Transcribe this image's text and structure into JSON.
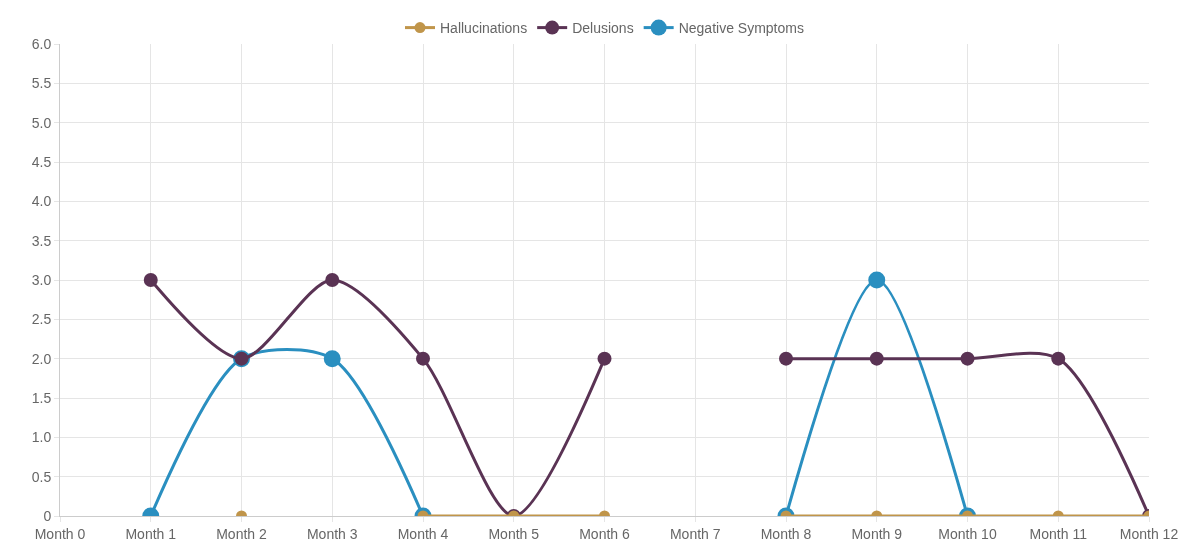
{
  "chart_data": {
    "type": "line",
    "categories": [
      "Month 0",
      "Month 1",
      "Month 2",
      "Month 3",
      "Month 4",
      "Month 5",
      "Month 6",
      "Month 7",
      "Month 8",
      "Month 9",
      "Month 10",
      "Month 11",
      "Month 12"
    ],
    "series": [
      {
        "name": "Hallucinations",
        "color": "#c0954a",
        "values": [
          null,
          null,
          0,
          null,
          0,
          0,
          0,
          null,
          0,
          0,
          0,
          0,
          0
        ]
      },
      {
        "name": "Delusions",
        "color": "#5a3354",
        "values": [
          null,
          3,
          2,
          3,
          2,
          0,
          2,
          null,
          2,
          2,
          2,
          2,
          0
        ]
      },
      {
        "name": "Negative Symptoms",
        "color": "#2a8fc0",
        "values": [
          null,
          0,
          2,
          2,
          0,
          null,
          null,
          null,
          0,
          3,
          0,
          null,
          null
        ]
      }
    ],
    "ylim": [
      0,
      6
    ],
    "yticks": [
      0,
      0.5,
      {
        "value": 1,
        "label": "1.0"
      },
      1.5,
      {
        "value": 2,
        "label": "2.0"
      },
      2.5,
      {
        "value": 3,
        "label": "3.0"
      },
      3.5,
      {
        "value": 4,
        "label": "4.0"
      },
      4.5,
      {
        "value": 5,
        "label": "5.0"
      },
      5.5,
      {
        "value": 6,
        "label": "6.0"
      }
    ],
    "grid": true,
    "legend": "top",
    "marker": "circle",
    "line_style": "solid"
  }
}
